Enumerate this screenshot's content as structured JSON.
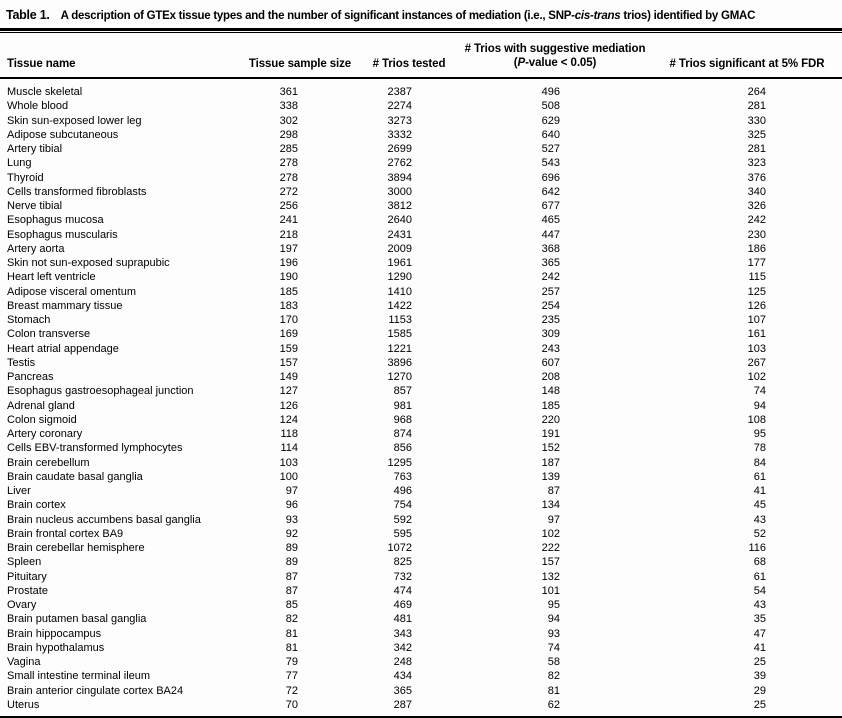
{
  "title": {
    "label": "Table 1.",
    "segments": [
      {
        "text": "A description of GTEx tissue types and the number of significant instances of mediation (i.e., SNP-"
      },
      {
        "text": "cis-trans",
        "italic": true
      },
      {
        "text": " trios) identified by GMAC"
      }
    ]
  },
  "table": {
    "columns": [
      {
        "segments": [
          {
            "text": "Tissue name"
          }
        ]
      },
      {
        "segments": [
          {
            "text": "Tissue sample size"
          }
        ]
      },
      {
        "segments": [
          {
            "text": "# Trios tested"
          }
        ]
      },
      {
        "line1": [
          {
            "text": "# Trios with suggestive mediation"
          }
        ],
        "line2": [
          {
            "text": "("
          },
          {
            "text": "P",
            "italic": true
          },
          {
            "text": "-value < 0.05)"
          }
        ]
      },
      {
        "segments": [
          {
            "text": "# Trios significant at 5% FDR"
          }
        ]
      }
    ],
    "rows": [
      [
        "Muscle skeletal",
        361,
        2387,
        496,
        264
      ],
      [
        "Whole blood",
        338,
        2274,
        508,
        281
      ],
      [
        "Skin sun-exposed lower leg",
        302,
        3273,
        629,
        330
      ],
      [
        "Adipose subcutaneous",
        298,
        3332,
        640,
        325
      ],
      [
        "Artery tibial",
        285,
        2699,
        527,
        281
      ],
      [
        "Lung",
        278,
        2762,
        543,
        323
      ],
      [
        "Thyroid",
        278,
        3894,
        696,
        376
      ],
      [
        "Cells transformed fibroblasts",
        272,
        3000,
        642,
        340
      ],
      [
        "Nerve tibial",
        256,
        3812,
        677,
        326
      ],
      [
        "Esophagus mucosa",
        241,
        2640,
        465,
        242
      ],
      [
        "Esophagus muscularis",
        218,
        2431,
        447,
        230
      ],
      [
        "Artery aorta",
        197,
        2009,
        368,
        186
      ],
      [
        "Skin not sun-exposed suprapubic",
        196,
        1961,
        365,
        177
      ],
      [
        "Heart left ventricle",
        190,
        1290,
        242,
        115
      ],
      [
        "Adipose visceral omentum",
        185,
        1410,
        257,
        125
      ],
      [
        "Breast mammary tissue",
        183,
        1422,
        254,
        126
      ],
      [
        "Stomach",
        170,
        1153,
        235,
        107
      ],
      [
        "Colon transverse",
        169,
        1585,
        309,
        161
      ],
      [
        "Heart atrial appendage",
        159,
        1221,
        243,
        103
      ],
      [
        "Testis",
        157,
        3896,
        607,
        267
      ],
      [
        "Pancreas",
        149,
        1270,
        208,
        102
      ],
      [
        "Esophagus gastroesophageal junction",
        127,
        857,
        148,
        74
      ],
      [
        "Adrenal gland",
        126,
        981,
        185,
        94
      ],
      [
        "Colon sigmoid",
        124,
        968,
        220,
        108
      ],
      [
        "Artery coronary",
        118,
        874,
        191,
        95
      ],
      [
        "Cells EBV-transformed lymphocytes",
        114,
        856,
        152,
        78
      ],
      [
        "Brain cerebellum",
        103,
        1295,
        187,
        84
      ],
      [
        "Brain caudate basal ganglia",
        100,
        763,
        139,
        61
      ],
      [
        "Liver",
        97,
        496,
        87,
        41
      ],
      [
        "Brain cortex",
        96,
        754,
        134,
        45
      ],
      [
        "Brain nucleus accumbens basal ganglia",
        93,
        592,
        97,
        43
      ],
      [
        "Brain frontal cortex BA9",
        92,
        595,
        102,
        52
      ],
      [
        "Brain cerebellar hemisphere",
        89,
        1072,
        222,
        116
      ],
      [
        "Spleen",
        89,
        825,
        157,
        68
      ],
      [
        "Pituitary",
        87,
        732,
        132,
        61
      ],
      [
        "Prostate",
        87,
        474,
        101,
        54
      ],
      [
        "Ovary",
        85,
        469,
        95,
        43
      ],
      [
        "Brain putamen basal ganglia",
        82,
        481,
        94,
        35
      ],
      [
        "Brain hippocampus",
        81,
        343,
        93,
        47
      ],
      [
        "Brain hypothalamus",
        81,
        342,
        74,
        41
      ],
      [
        "Vagina",
        79,
        248,
        58,
        25
      ],
      [
        "Small intestine terminal ileum",
        77,
        434,
        82,
        39
      ],
      [
        "Brain anterior cingulate cortex BA24",
        72,
        365,
        81,
        29
      ],
      [
        "Uterus",
        70,
        287,
        62,
        25
      ]
    ]
  }
}
